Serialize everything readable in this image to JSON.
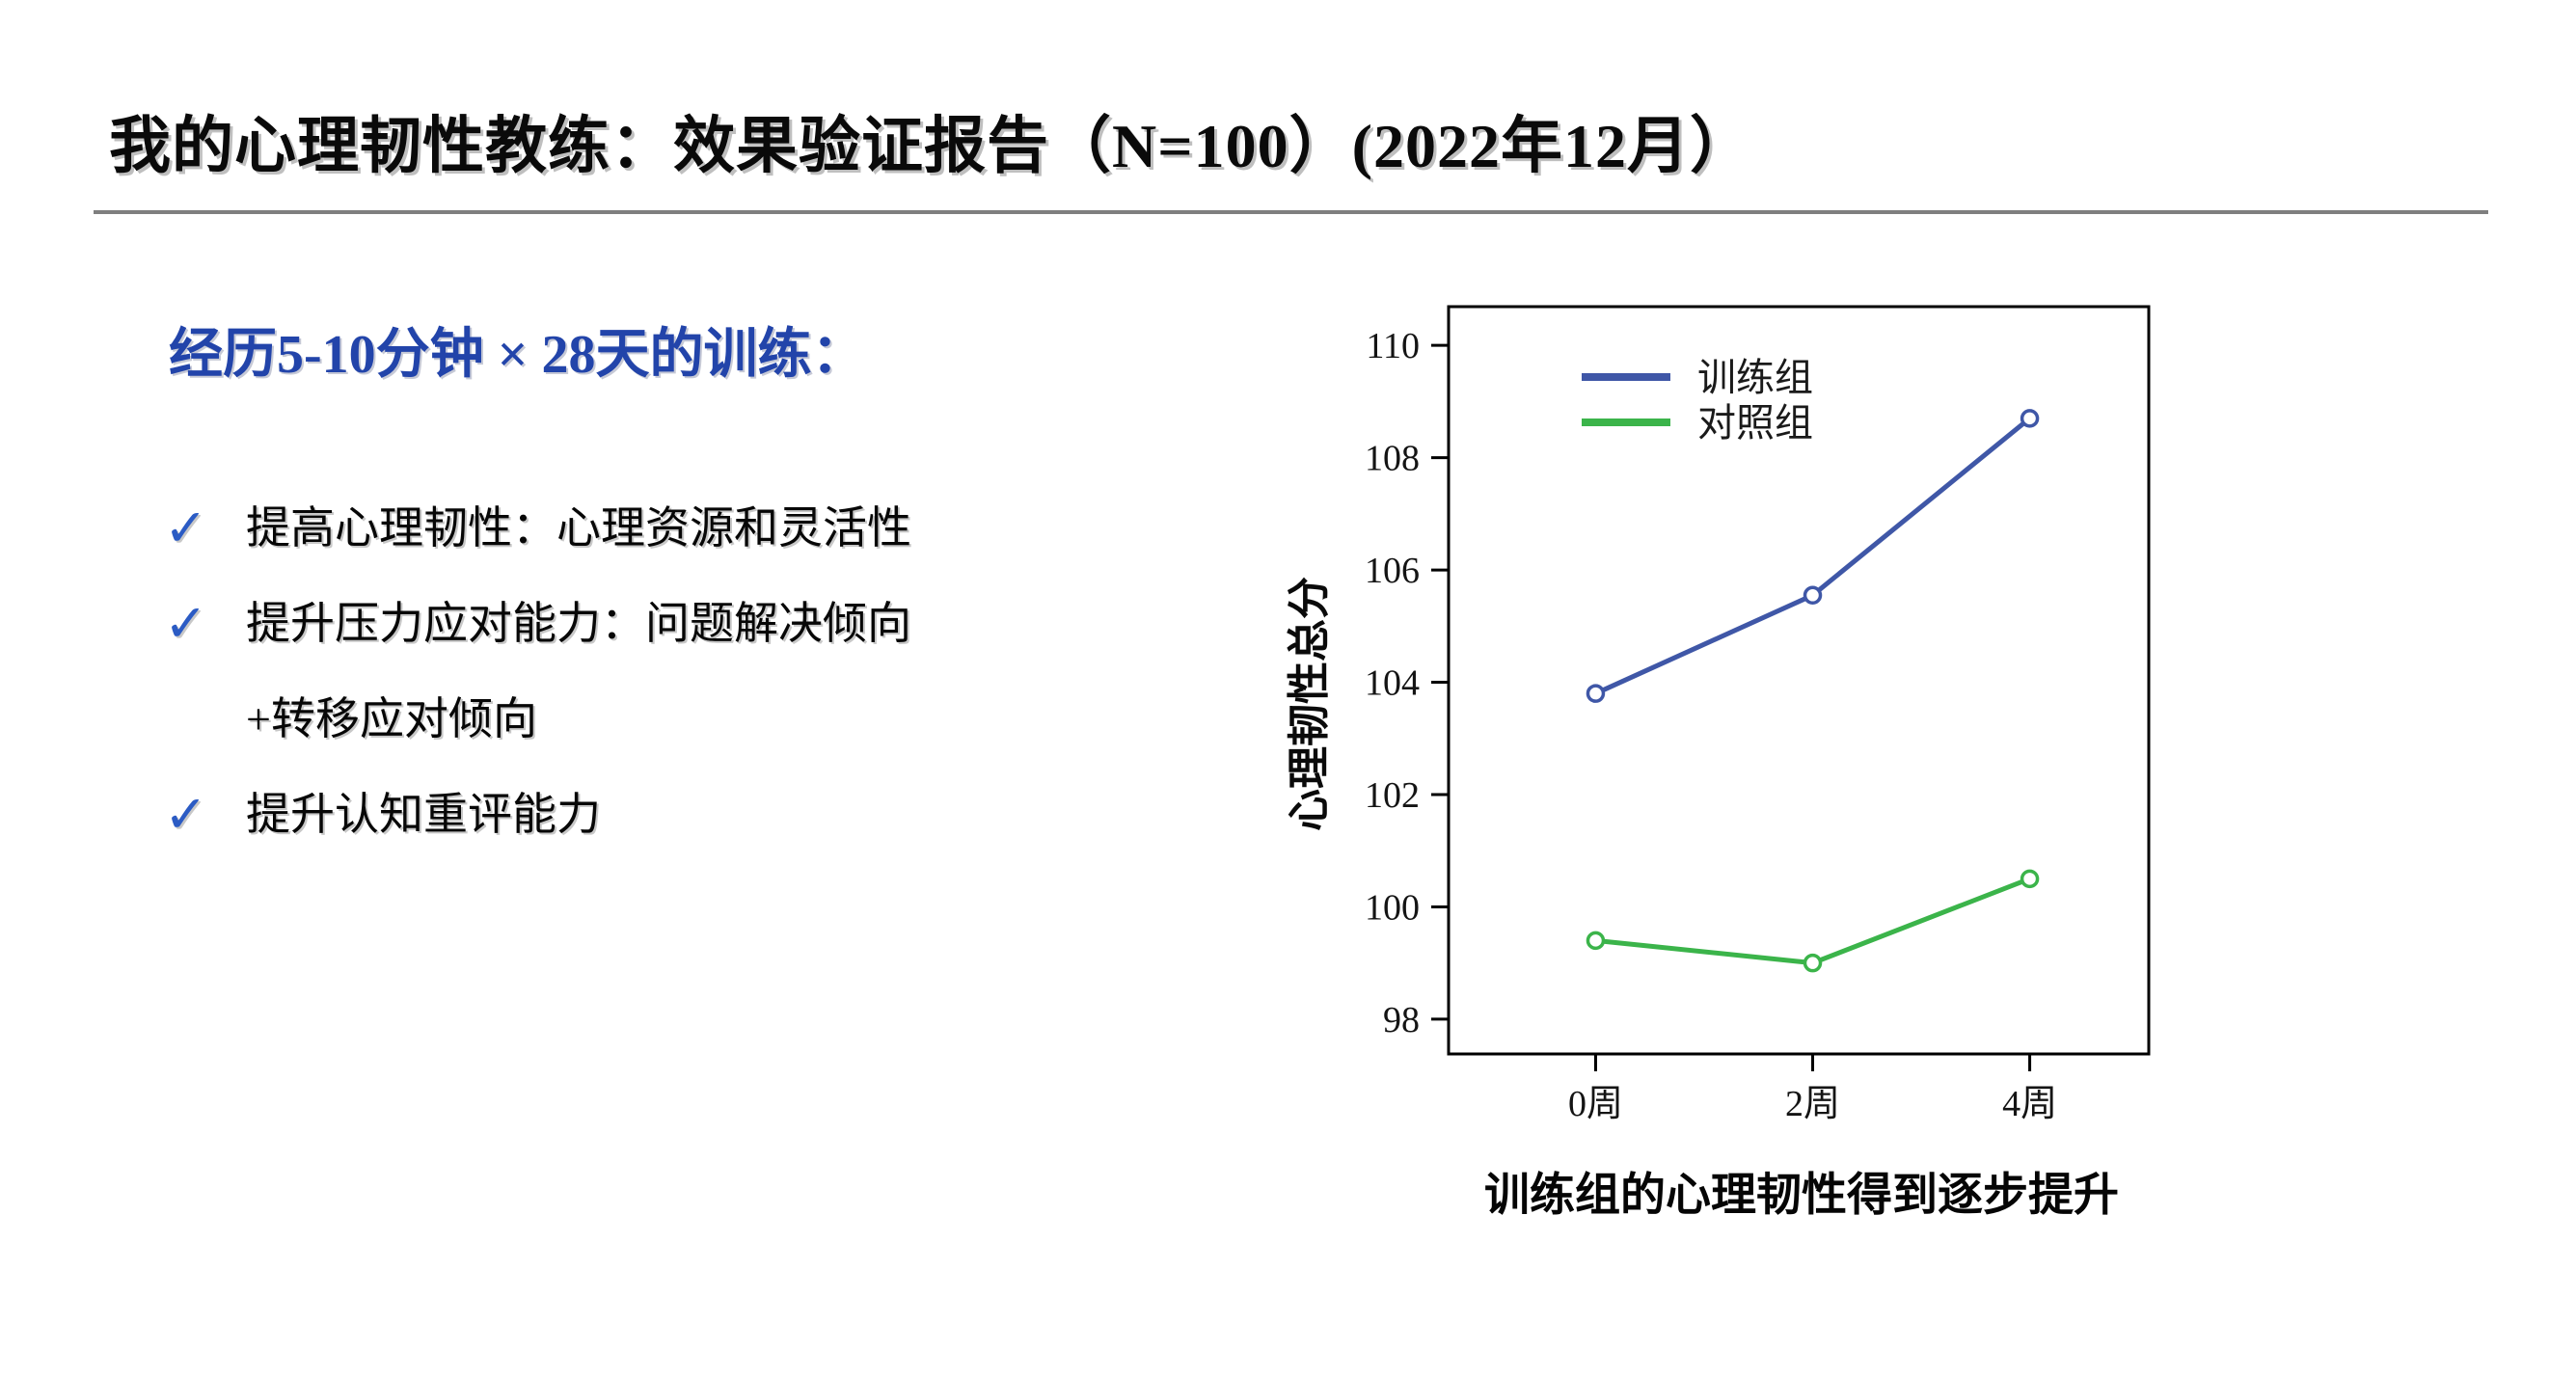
{
  "slide": {
    "title": "我的心理韧性教练：效果验证报告（N=100）(2022年12月）",
    "subtitle": "经历5-10分钟 × 28天的训练：",
    "subtitle_color": "#2244aa",
    "check_glyph": "✓",
    "check_color": "#2b5bc4",
    "bullets": [
      {
        "lines": [
          "提高心理韧性：心理资源和灵活性"
        ]
      },
      {
        "lines": [
          "提升压力应对能力：问题解决倾向",
          "+转移应对倾向"
        ]
      },
      {
        "lines": [
          "提升认知重评能力"
        ]
      }
    ]
  },
  "chart_data": {
    "type": "line",
    "categories": [
      "0周",
      "2周",
      "4周"
    ],
    "series": [
      {
        "name": "训练组",
        "values": [
          103.8,
          105.55,
          108.7
        ],
        "color": "#3f57a7"
      },
      {
        "name": "对照组",
        "values": [
          99.4,
          99.0,
          100.5
        ],
        "color": "#3bb44a"
      }
    ],
    "title": "",
    "xlabel": "",
    "ylabel": "心理韧性总分",
    "yticks": [
      110,
      108,
      106,
      104,
      102,
      100,
      98
    ],
    "ylim": [
      97.38,
      110.69
    ],
    "grid": false,
    "marker": "open-circle",
    "legend_position": "upper-left-inside",
    "caption": "训练组的心理韧性得到逐步提升"
  }
}
